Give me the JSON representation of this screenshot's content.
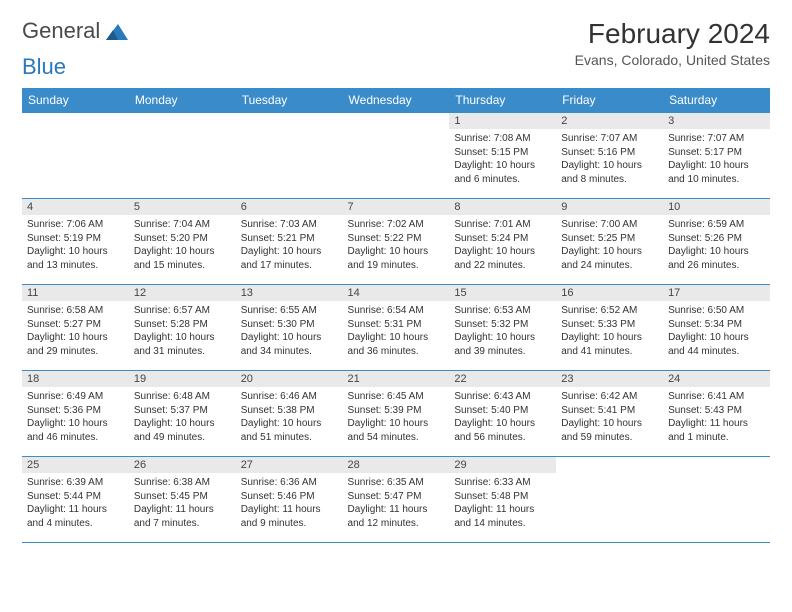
{
  "logo": {
    "word1": "General",
    "word2": "Blue"
  },
  "header": {
    "month_title": "February 2024",
    "location": "Evans, Colorado, United States"
  },
  "colors": {
    "header_bg": "#3a8bc9",
    "header_text": "#ffffff",
    "daynum_bg": "#e9e9e9",
    "row_border": "#3a8bc9"
  },
  "weekdays": [
    "Sunday",
    "Monday",
    "Tuesday",
    "Wednesday",
    "Thursday",
    "Friday",
    "Saturday"
  ],
  "days": [
    {
      "n": 1,
      "rise": "7:08 AM",
      "set": "5:15 PM",
      "dl": "10 hours and 6 minutes."
    },
    {
      "n": 2,
      "rise": "7:07 AM",
      "set": "5:16 PM",
      "dl": "10 hours and 8 minutes."
    },
    {
      "n": 3,
      "rise": "7:07 AM",
      "set": "5:17 PM",
      "dl": "10 hours and 10 minutes."
    },
    {
      "n": 4,
      "rise": "7:06 AM",
      "set": "5:19 PM",
      "dl": "10 hours and 13 minutes."
    },
    {
      "n": 5,
      "rise": "7:04 AM",
      "set": "5:20 PM",
      "dl": "10 hours and 15 minutes."
    },
    {
      "n": 6,
      "rise": "7:03 AM",
      "set": "5:21 PM",
      "dl": "10 hours and 17 minutes."
    },
    {
      "n": 7,
      "rise": "7:02 AM",
      "set": "5:22 PM",
      "dl": "10 hours and 19 minutes."
    },
    {
      "n": 8,
      "rise": "7:01 AM",
      "set": "5:24 PM",
      "dl": "10 hours and 22 minutes."
    },
    {
      "n": 9,
      "rise": "7:00 AM",
      "set": "5:25 PM",
      "dl": "10 hours and 24 minutes."
    },
    {
      "n": 10,
      "rise": "6:59 AM",
      "set": "5:26 PM",
      "dl": "10 hours and 26 minutes."
    },
    {
      "n": 11,
      "rise": "6:58 AM",
      "set": "5:27 PM",
      "dl": "10 hours and 29 minutes."
    },
    {
      "n": 12,
      "rise": "6:57 AM",
      "set": "5:28 PM",
      "dl": "10 hours and 31 minutes."
    },
    {
      "n": 13,
      "rise": "6:55 AM",
      "set": "5:30 PM",
      "dl": "10 hours and 34 minutes."
    },
    {
      "n": 14,
      "rise": "6:54 AM",
      "set": "5:31 PM",
      "dl": "10 hours and 36 minutes."
    },
    {
      "n": 15,
      "rise": "6:53 AM",
      "set": "5:32 PM",
      "dl": "10 hours and 39 minutes."
    },
    {
      "n": 16,
      "rise": "6:52 AM",
      "set": "5:33 PM",
      "dl": "10 hours and 41 minutes."
    },
    {
      "n": 17,
      "rise": "6:50 AM",
      "set": "5:34 PM",
      "dl": "10 hours and 44 minutes."
    },
    {
      "n": 18,
      "rise": "6:49 AM",
      "set": "5:36 PM",
      "dl": "10 hours and 46 minutes."
    },
    {
      "n": 19,
      "rise": "6:48 AM",
      "set": "5:37 PM",
      "dl": "10 hours and 49 minutes."
    },
    {
      "n": 20,
      "rise": "6:46 AM",
      "set": "5:38 PM",
      "dl": "10 hours and 51 minutes."
    },
    {
      "n": 21,
      "rise": "6:45 AM",
      "set": "5:39 PM",
      "dl": "10 hours and 54 minutes."
    },
    {
      "n": 22,
      "rise": "6:43 AM",
      "set": "5:40 PM",
      "dl": "10 hours and 56 minutes."
    },
    {
      "n": 23,
      "rise": "6:42 AM",
      "set": "5:41 PM",
      "dl": "10 hours and 59 minutes."
    },
    {
      "n": 24,
      "rise": "6:41 AM",
      "set": "5:43 PM",
      "dl": "11 hours and 1 minute."
    },
    {
      "n": 25,
      "rise": "6:39 AM",
      "set": "5:44 PM",
      "dl": "11 hours and 4 minutes."
    },
    {
      "n": 26,
      "rise": "6:38 AM",
      "set": "5:45 PM",
      "dl": "11 hours and 7 minutes."
    },
    {
      "n": 27,
      "rise": "6:36 AM",
      "set": "5:46 PM",
      "dl": "11 hours and 9 minutes."
    },
    {
      "n": 28,
      "rise": "6:35 AM",
      "set": "5:47 PM",
      "dl": "11 hours and 12 minutes."
    },
    {
      "n": 29,
      "rise": "6:33 AM",
      "set": "5:48 PM",
      "dl": "11 hours and 14 minutes."
    }
  ],
  "first_weekday_index": 4,
  "labels": {
    "sunrise": "Sunrise:",
    "sunset": "Sunset:",
    "daylight": "Daylight:"
  }
}
